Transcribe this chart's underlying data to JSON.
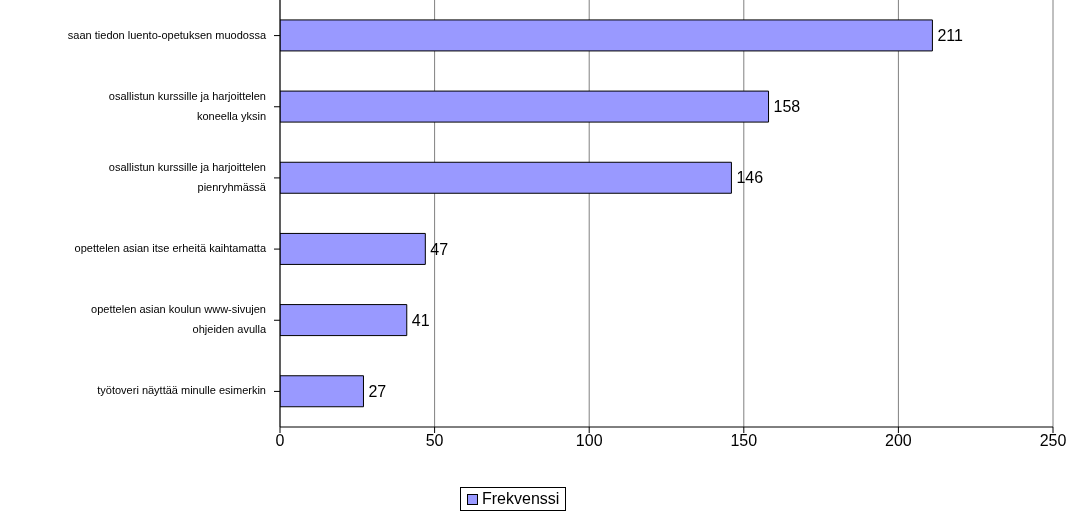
{
  "chart_data": {
    "type": "bar",
    "orientation": "horizontal",
    "categories": [
      "saan tiedon luento-opetuksen muodossa",
      "osallistun kurssille ja harjoittelen koneella yksin",
      "osallistun kurssille ja harjoittelen pienryhmässä",
      "opettelen asian itse erheitä kaihtamatta",
      "opettelen asian koulun www-sivujen ohjeiden avulla",
      "työtoveri näyttää minulle esimerkin"
    ],
    "series": [
      {
        "name": "Frekvenssi",
        "color": "#9999ff",
        "values": [
          211,
          158,
          146,
          47,
          41,
          27
        ]
      }
    ],
    "xlim": [
      0,
      250
    ],
    "xticks": [
      0,
      50,
      100,
      150,
      200,
      250
    ],
    "grid": "x",
    "legend": "bottom",
    "data_labels": true
  }
}
